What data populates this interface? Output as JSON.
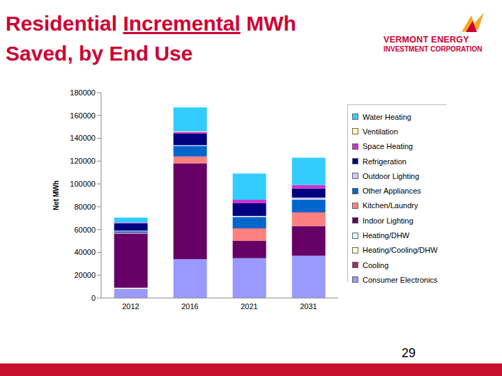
{
  "chart_data": {
    "type": "bar",
    "title": "Residential Incremental MWh Saved, by End Use",
    "y_label": "Net MWh",
    "categories": [
      "2012",
      "2016",
      "2021",
      "2031"
    ],
    "stacked": true,
    "legend": "right",
    "grid": false,
    "ylim": [
      0,
      180000
    ],
    "yticks": [
      0,
      20000,
      40000,
      60000,
      80000,
      100000,
      120000,
      140000,
      160000,
      180000
    ],
    "series": [
      {
        "name": "Consumer Electronics",
        "color": "#9999ff",
        "values": [
          8000,
          34000,
          35000,
          37000
        ]
      },
      {
        "name": "Cooling",
        "color": "#993366",
        "values": [
          0,
          0,
          0,
          0
        ]
      },
      {
        "name": "Heating/Cooling/DHW",
        "color": "#ffffcc",
        "values": [
          500,
          0,
          0,
          0
        ]
      },
      {
        "name": "Heating/DHW",
        "color": "#ccffff",
        "values": [
          500,
          0,
          0,
          0
        ]
      },
      {
        "name": "Indoor Lighting",
        "color": "#660066",
        "values": [
          47500,
          84000,
          15000,
          26000
        ]
      },
      {
        "name": "Kitchen/Laundry",
        "color": "#ff8080",
        "values": [
          500,
          6000,
          11000,
          12000
        ]
      },
      {
        "name": "Other Appliances",
        "color": "#0066cc",
        "values": [
          1500,
          9000,
          10000,
          11000
        ]
      },
      {
        "name": "Outdoor Lighting",
        "color": "#ccccff",
        "values": [
          500,
          1000,
          1000,
          2000
        ]
      },
      {
        "name": "Refrigeration",
        "color": "#000080",
        "values": [
          6500,
          10000,
          11000,
          8000
        ]
      },
      {
        "name": "Space Heating",
        "color": "#cc33cc",
        "values": [
          500,
          1500,
          3000,
          3000
        ]
      },
      {
        "name": "Ventilation",
        "color": "#ffff99",
        "values": [
          0,
          500,
          0,
          0
        ]
      },
      {
        "name": "Water Heating",
        "color": "#33ccff",
        "values": [
          4500,
          21000,
          23000,
          24000
        ]
      }
    ]
  },
  "slide": {
    "logo": [
      "VERMONT ENERGY",
      "INVESTMENT CORPORATION"
    ],
    "page": "29"
  }
}
